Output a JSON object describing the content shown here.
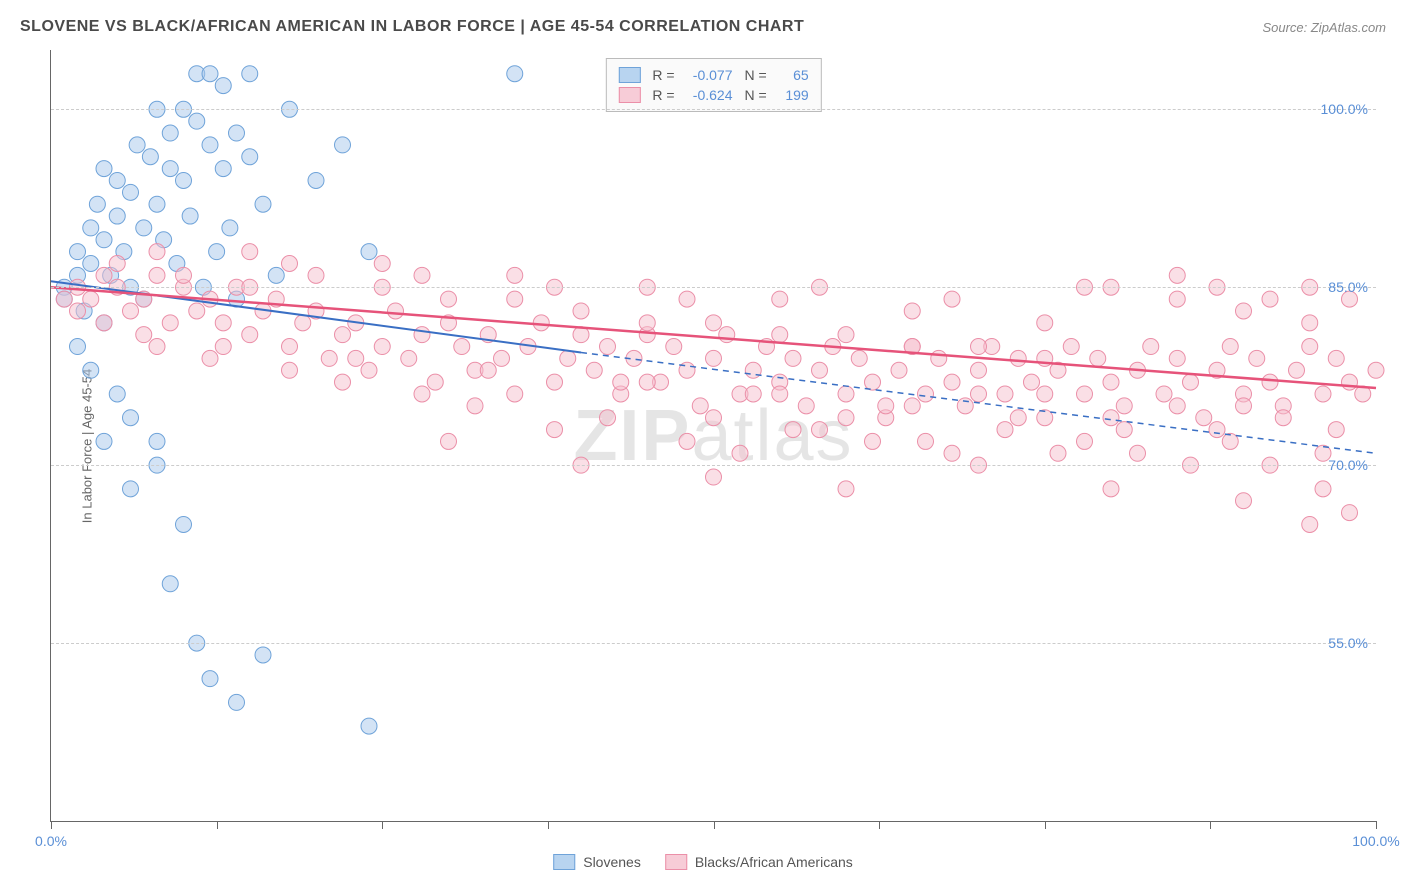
{
  "title": "SLOVENE VS BLACK/AFRICAN AMERICAN IN LABOR FORCE | AGE 45-54 CORRELATION CHART",
  "source": "Source: ZipAtlas.com",
  "y_axis_label": "In Labor Force | Age 45-54",
  "watermark": "ZIPatlas",
  "chart": {
    "type": "scatter-with-regression",
    "xlim": [
      0,
      100
    ],
    "ylim": [
      40,
      105
    ],
    "y_ticks": [
      55.0,
      70.0,
      85.0,
      100.0
    ],
    "y_tick_labels": [
      "55.0%",
      "70.0%",
      "85.0%",
      "100.0%"
    ],
    "x_ticks": [
      0,
      12.5,
      25,
      37.5,
      50,
      62.5,
      75,
      87.5,
      100
    ],
    "x_tick_labels_shown": {
      "0": "0.0%",
      "100": "100.0%"
    },
    "background_color": "#ffffff",
    "grid_color": "#cccccc",
    "axis_color": "#666666",
    "tick_label_color": "#5a8fd6",
    "marker_radius": 8,
    "marker_opacity": 0.5,
    "series": [
      {
        "name": "Slovenes",
        "color_fill": "#a7c8ec",
        "color_stroke": "#6fa3d9",
        "swatch_fill": "#b8d4f0",
        "swatch_border": "#6fa3d9",
        "R": "-0.077",
        "N": "65",
        "regression": {
          "x1": 0,
          "y1": 85.5,
          "x2": 40,
          "y2": 79.5,
          "solid_until_x": 40,
          "dash_to_x": 100,
          "dash_y2": 71,
          "color": "#3a6fc4",
          "width": 2
        },
        "points": [
          [
            1,
            85
          ],
          [
            1,
            84
          ],
          [
            2,
            86
          ],
          [
            2,
            88
          ],
          [
            2.5,
            83
          ],
          [
            3,
            87
          ],
          [
            3,
            90
          ],
          [
            3.5,
            92
          ],
          [
            4,
            95
          ],
          [
            4,
            89
          ],
          [
            4.5,
            86
          ],
          [
            5,
            91
          ],
          [
            5,
            94
          ],
          [
            5.5,
            88
          ],
          [
            6,
            93
          ],
          [
            6,
            85
          ],
          [
            6.5,
            97
          ],
          [
            7,
            90
          ],
          [
            7,
            84
          ],
          [
            7.5,
            96
          ],
          [
            8,
            92
          ],
          [
            8,
            100
          ],
          [
            8.5,
            89
          ],
          [
            9,
            95
          ],
          [
            9,
            98
          ],
          [
            9.5,
            87
          ],
          [
            10,
            100
          ],
          [
            10,
            94
          ],
          [
            10.5,
            91
          ],
          [
            11,
            103
          ],
          [
            11,
            99
          ],
          [
            11.5,
            85
          ],
          [
            12,
            97
          ],
          [
            12,
            103
          ],
          [
            12.5,
            88
          ],
          [
            13,
            102
          ],
          [
            13,
            95
          ],
          [
            13.5,
            90
          ],
          [
            14,
            98
          ],
          [
            14,
            84
          ],
          [
            15,
            96
          ],
          [
            15,
            103
          ],
          [
            16,
            92
          ],
          [
            17,
            86
          ],
          [
            18,
            100
          ],
          [
            20,
            94
          ],
          [
            22,
            97
          ],
          [
            24,
            88
          ],
          [
            2,
            80
          ],
          [
            3,
            78
          ],
          [
            4,
            82
          ],
          [
            5,
            76
          ],
          [
            6,
            74
          ],
          [
            8,
            70
          ],
          [
            10,
            65
          ],
          [
            8,
            72
          ],
          [
            4,
            72
          ],
          [
            6,
            68
          ],
          [
            9,
            60
          ],
          [
            11,
            55
          ],
          [
            12,
            52
          ],
          [
            14,
            50
          ],
          [
            16,
            54
          ],
          [
            24,
            48
          ],
          [
            35,
            103
          ]
        ]
      },
      {
        "name": "Blacks/African Americans",
        "color_fill": "#f5c0ce",
        "color_stroke": "#eb8fa8",
        "swatch_fill": "#f7ccd7",
        "swatch_border": "#eb8fa8",
        "R": "-0.624",
        "N": "199",
        "regression": {
          "x1": 0,
          "y1": 85,
          "x2": 100,
          "y2": 76.5,
          "color": "#e6537a",
          "width": 2.5
        },
        "points": [
          [
            2,
            85
          ],
          [
            3,
            84
          ],
          [
            4,
            86
          ],
          [
            5,
            85
          ],
          [
            6,
            83
          ],
          [
            7,
            84
          ],
          [
            8,
            86
          ],
          [
            9,
            82
          ],
          [
            10,
            85
          ],
          [
            11,
            83
          ],
          [
            12,
            84
          ],
          [
            13,
            82
          ],
          [
            14,
            85
          ],
          [
            15,
            81
          ],
          [
            16,
            83
          ],
          [
            17,
            84
          ],
          [
            18,
            80
          ],
          [
            19,
            82
          ],
          [
            20,
            83
          ],
          [
            21,
            79
          ],
          [
            22,
            81
          ],
          [
            23,
            82
          ],
          [
            24,
            78
          ],
          [
            25,
            80
          ],
          [
            26,
            83
          ],
          [
            27,
            79
          ],
          [
            28,
            81
          ],
          [
            29,
            77
          ],
          [
            30,
            82
          ],
          [
            31,
            80
          ],
          [
            32,
            78
          ],
          [
            33,
            81
          ],
          [
            34,
            79
          ],
          [
            35,
            76
          ],
          [
            36,
            80
          ],
          [
            37,
            82
          ],
          [
            38,
            77
          ],
          [
            39,
            79
          ],
          [
            40,
            81
          ],
          [
            41,
            78
          ],
          [
            42,
            80
          ],
          [
            43,
            76
          ],
          [
            44,
            79
          ],
          [
            45,
            81
          ],
          [
            46,
            77
          ],
          [
            47,
            80
          ],
          [
            48,
            78
          ],
          [
            49,
            75
          ],
          [
            50,
            79
          ],
          [
            51,
            81
          ],
          [
            52,
            76
          ],
          [
            53,
            78
          ],
          [
            54,
            80
          ],
          [
            55,
            77
          ],
          [
            56,
            79
          ],
          [
            57,
            75
          ],
          [
            58,
            78
          ],
          [
            59,
            80
          ],
          [
            60,
            76
          ],
          [
            61,
            79
          ],
          [
            62,
            77
          ],
          [
            63,
            74
          ],
          [
            64,
            78
          ],
          [
            65,
            80
          ],
          [
            66,
            76
          ],
          [
            67,
            79
          ],
          [
            68,
            77
          ],
          [
            69,
            75
          ],
          [
            70,
            78
          ],
          [
            71,
            80
          ],
          [
            72,
            76
          ],
          [
            73,
            79
          ],
          [
            74,
            77
          ],
          [
            75,
            74
          ],
          [
            76,
            78
          ],
          [
            77,
            80
          ],
          [
            78,
            76
          ],
          [
            79,
            79
          ],
          [
            80,
            77
          ],
          [
            81,
            75
          ],
          [
            82,
            78
          ],
          [
            83,
            80
          ],
          [
            84,
            76
          ],
          [
            85,
            79
          ],
          [
            86,
            77
          ],
          [
            87,
            74
          ],
          [
            88,
            78
          ],
          [
            89,
            80
          ],
          [
            90,
            76
          ],
          [
            91,
            79
          ],
          [
            92,
            77
          ],
          [
            93,
            75
          ],
          [
            94,
            78
          ],
          [
            95,
            80
          ],
          [
            96,
            76
          ],
          [
            97,
            79
          ],
          [
            98,
            77
          ],
          [
            99,
            76
          ],
          [
            100,
            78
          ],
          [
            5,
            87
          ],
          [
            10,
            86
          ],
          [
            15,
            85
          ],
          [
            20,
            86
          ],
          [
            25,
            85
          ],
          [
            30,
            84
          ],
          [
            35,
            84
          ],
          [
            40,
            83
          ],
          [
            45,
            82
          ],
          [
            50,
            82
          ],
          [
            55,
            81
          ],
          [
            60,
            81
          ],
          [
            65,
            80
          ],
          [
            70,
            80
          ],
          [
            75,
            79
          ],
          [
            80,
            85
          ],
          [
            85,
            84
          ],
          [
            90,
            83
          ],
          [
            95,
            82
          ],
          [
            98,
            84
          ],
          [
            8,
            80
          ],
          [
            12,
            79
          ],
          [
            18,
            78
          ],
          [
            22,
            77
          ],
          [
            28,
            76
          ],
          [
            32,
            75
          ],
          [
            38,
            73
          ],
          [
            42,
            74
          ],
          [
            48,
            72
          ],
          [
            52,
            71
          ],
          [
            58,
            73
          ],
          [
            62,
            72
          ],
          [
            68,
            71
          ],
          [
            72,
            73
          ],
          [
            78,
            72
          ],
          [
            82,
            71
          ],
          [
            88,
            73
          ],
          [
            92,
            70
          ],
          [
            96,
            68
          ],
          [
            98,
            66
          ],
          [
            15,
            88
          ],
          [
            25,
            87
          ],
          [
            35,
            86
          ],
          [
            45,
            85
          ],
          [
            55,
            84
          ],
          [
            65,
            83
          ],
          [
            75,
            82
          ],
          [
            85,
            86
          ],
          [
            95,
            85
          ],
          [
            30,
            72
          ],
          [
            40,
            70
          ],
          [
            50,
            74
          ],
          [
            60,
            68
          ],
          [
            70,
            70
          ],
          [
            80,
            68
          ],
          [
            90,
            67
          ],
          [
            95,
            65
          ],
          [
            88,
            85
          ],
          [
            92,
            84
          ],
          [
            78,
            85
          ],
          [
            68,
            84
          ],
          [
            58,
            85
          ],
          [
            48,
            84
          ],
          [
            38,
            85
          ],
          [
            28,
            86
          ],
          [
            18,
            87
          ],
          [
            8,
            88
          ],
          [
            45,
            77
          ],
          [
            55,
            76
          ],
          [
            65,
            75
          ],
          [
            75,
            76
          ],
          [
            85,
            75
          ],
          [
            93,
            74
          ],
          [
            97,
            73
          ],
          [
            89,
            72
          ],
          [
            81,
            73
          ],
          [
            73,
            74
          ],
          [
            63,
            75
          ],
          [
            53,
            76
          ],
          [
            43,
            77
          ],
          [
            33,
            78
          ],
          [
            23,
            79
          ],
          [
            13,
            80
          ],
          [
            7,
            81
          ],
          [
            4,
            82
          ],
          [
            2,
            83
          ],
          [
            1,
            84
          ],
          [
            50,
            69
          ],
          [
            60,
            74
          ],
          [
            70,
            76
          ],
          [
            80,
            74
          ],
          [
            90,
            75
          ],
          [
            96,
            71
          ],
          [
            86,
            70
          ],
          [
            76,
            71
          ],
          [
            66,
            72
          ],
          [
            56,
            73
          ]
        ]
      }
    ]
  },
  "legend_bottom": [
    {
      "label": "Slovenes",
      "swatch_fill": "#b8d4f0",
      "swatch_border": "#6fa3d9"
    },
    {
      "label": "Blacks/African Americans",
      "swatch_fill": "#f7ccd7",
      "swatch_border": "#eb8fa8"
    }
  ]
}
